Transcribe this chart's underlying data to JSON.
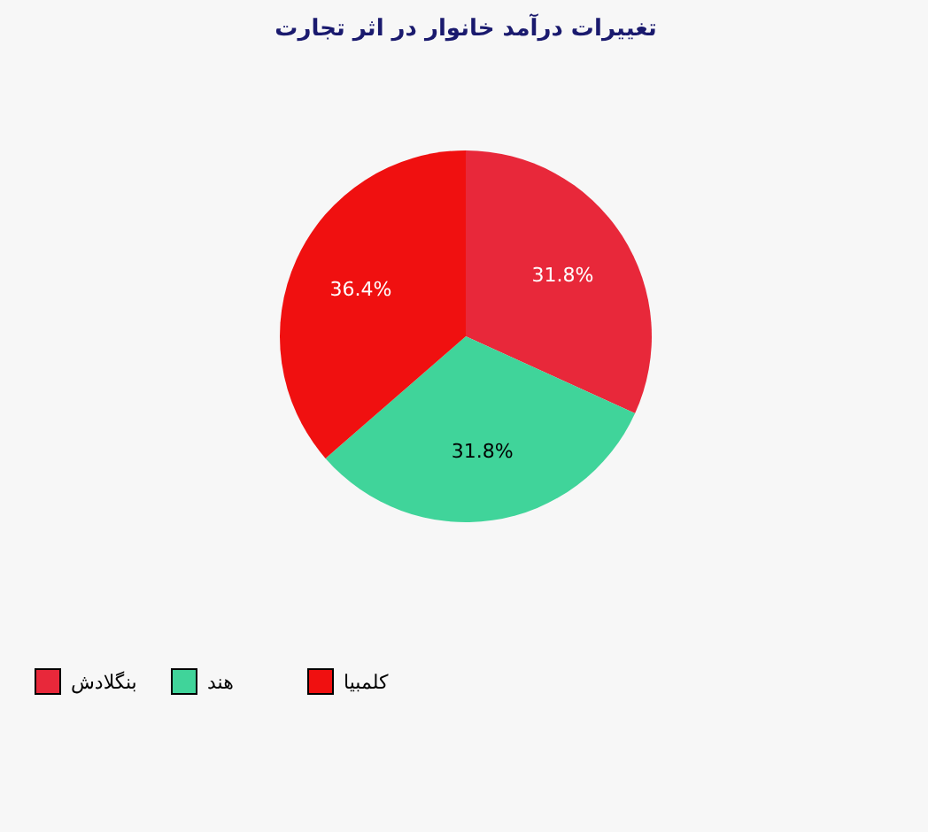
{
  "chart_data": {
    "type": "pie",
    "title": "تغییرات درآمد خانوار در اثر تجارت",
    "categories": [
      "بنگلادش",
      "هند",
      "کلمبیا"
    ],
    "values": [
      31.8,
      31.8,
      36.4
    ],
    "value_labels": [
      "31.8%",
      "31.8%",
      "36.4%"
    ],
    "colors": [
      "#e8283a",
      "#40d49a",
      "#f01010"
    ],
    "legend": "bottom left"
  }
}
